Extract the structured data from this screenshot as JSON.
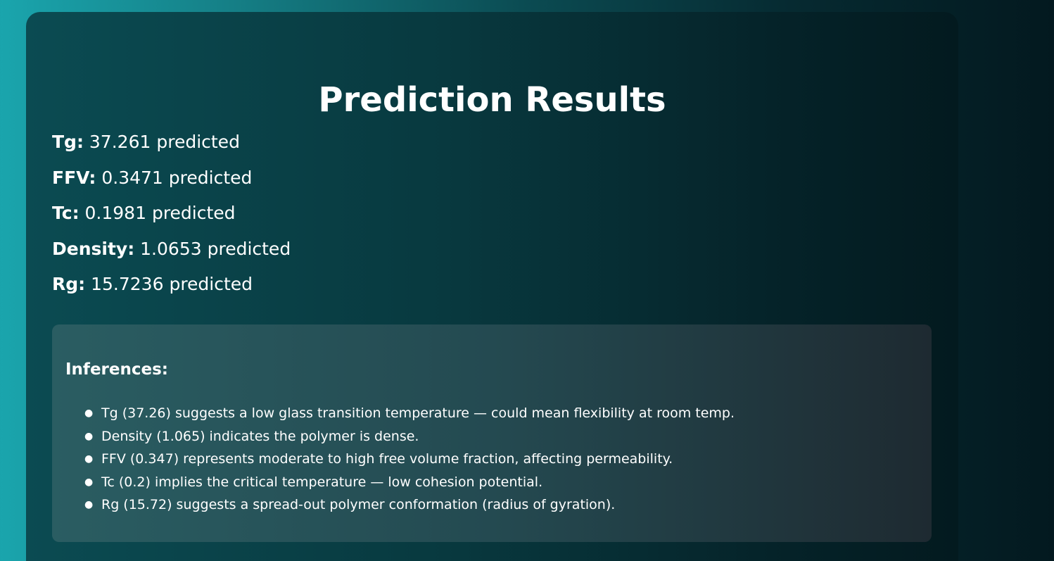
{
  "title": "Prediction Results",
  "results": [
    {
      "name": "Tg",
      "value": "37.261",
      "suffix": "predicted"
    },
    {
      "name": "FFV",
      "value": "0.3471",
      "suffix": "predicted"
    },
    {
      "name": "Tc",
      "value": "0.1981",
      "suffix": "predicted"
    },
    {
      "name": "Density",
      "value": "1.0653",
      "suffix": "predicted"
    },
    {
      "name": "Rg",
      "value": "15.7236",
      "suffix": "predicted"
    }
  ],
  "inferences": {
    "title": "Inferences:",
    "items": [
      "Tg (37.26) suggests a low glass transition temperature — could mean flexibility at room temp.",
      "Density (1.065) indicates the polymer is dense.",
      "FFV (0.347) represents moderate to high free volume fraction, affecting permeability.",
      "Tc (0.2) implies the critical temperature — low cohesion potential.",
      "Rg (15.72) suggests a spread-out polymer conformation (radius of gyration)."
    ]
  },
  "colors": {
    "background_start": "#1aa5ad",
    "background_end": "#03191f",
    "card": "#0b4b52",
    "text": "#ffffff"
  }
}
